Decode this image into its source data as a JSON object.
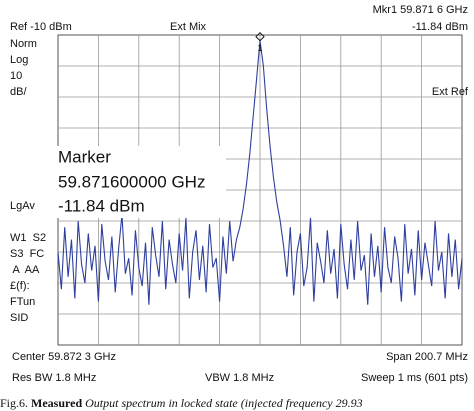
{
  "header": {
    "marker_readout": "Mkr1  59.871 6 GHz",
    "ref_level": "Ref -10 dBm",
    "mixer": "Ext Mix",
    "marker_amplitude": "-11.84 dBm"
  },
  "left_panel": {
    "lines": [
      "Norm",
      "Log",
      "10",
      "dB/"
    ],
    "averaging": "LgAv",
    "status": [
      "W1  S2",
      "S3  FC",
      " A  AA",
      "£(f):",
      "FTun",
      "SID"
    ]
  },
  "right_panel": {
    "reference": "Ext Ref"
  },
  "marker_box": {
    "title": "Marker",
    "frequency": "59.871600000 GHz",
    "amplitude": "-11.84 dBm",
    "marker_label": "1"
  },
  "footer": {
    "center": "Center 59.872 3 GHz",
    "span": "Span 200.7 MHz",
    "res_bw": "Res BW 1.8 MHz",
    "vbw": "VBW 1.8 MHz",
    "sweep": "Sweep 1 ms (601 pts)"
  },
  "caption": {
    "label": "Fig.6.",
    "emphasis": "Measured",
    "text": "Output spectrum in locked state (injected frequency 29.93"
  },
  "trace": {
    "color": "#2f3f9f",
    "ylim": [
      -110,
      -10
    ],
    "peak_index": 60,
    "values": [
      -80,
      -92,
      -72,
      -88,
      -76,
      -95,
      -70,
      -84,
      -90,
      -74,
      -86,
      -78,
      -96,
      -71,
      -83,
      -89,
      -75,
      -93,
      -79,
      -68,
      -87,
      -82,
      -94,
      -73,
      -85,
      -91,
      -77,
      -97,
      -72,
      -81,
      -88,
      -70,
      -92,
      -76,
      -84,
      -90,
      -74,
      -86,
      -69,
      -95,
      -80,
      -73,
      -89,
      -78,
      -93,
      -71,
      -85,
      -82,
      -96,
      -75,
      -87,
      -70,
      -83,
      -76,
      -72,
      -66,
      -58,
      -48,
      -36,
      -24,
      -11.84,
      -20,
      -34,
      -46,
      -56,
      -64,
      -70,
      -78,
      -88,
      -72,
      -94,
      -80,
      -74,
      -91,
      -85,
      -69,
      -96,
      -77,
      -83,
      -90,
      -73,
      -87,
      -79,
      -95,
      -71,
      -84,
      -92,
      -76,
      -89,
      -70,
      -86,
      -81,
      -97,
      -74,
      -88,
      -78,
      -93,
      -72,
      -85,
      -90,
      -75,
      -82,
      -96,
      -71,
      -87,
      -79,
      -94,
      -73,
      -89,
      -77,
      -84,
      -91,
      -70,
      -86,
      -80,
      -95,
      -74,
      -88,
      -76,
      -92,
      -82
    ]
  }
}
